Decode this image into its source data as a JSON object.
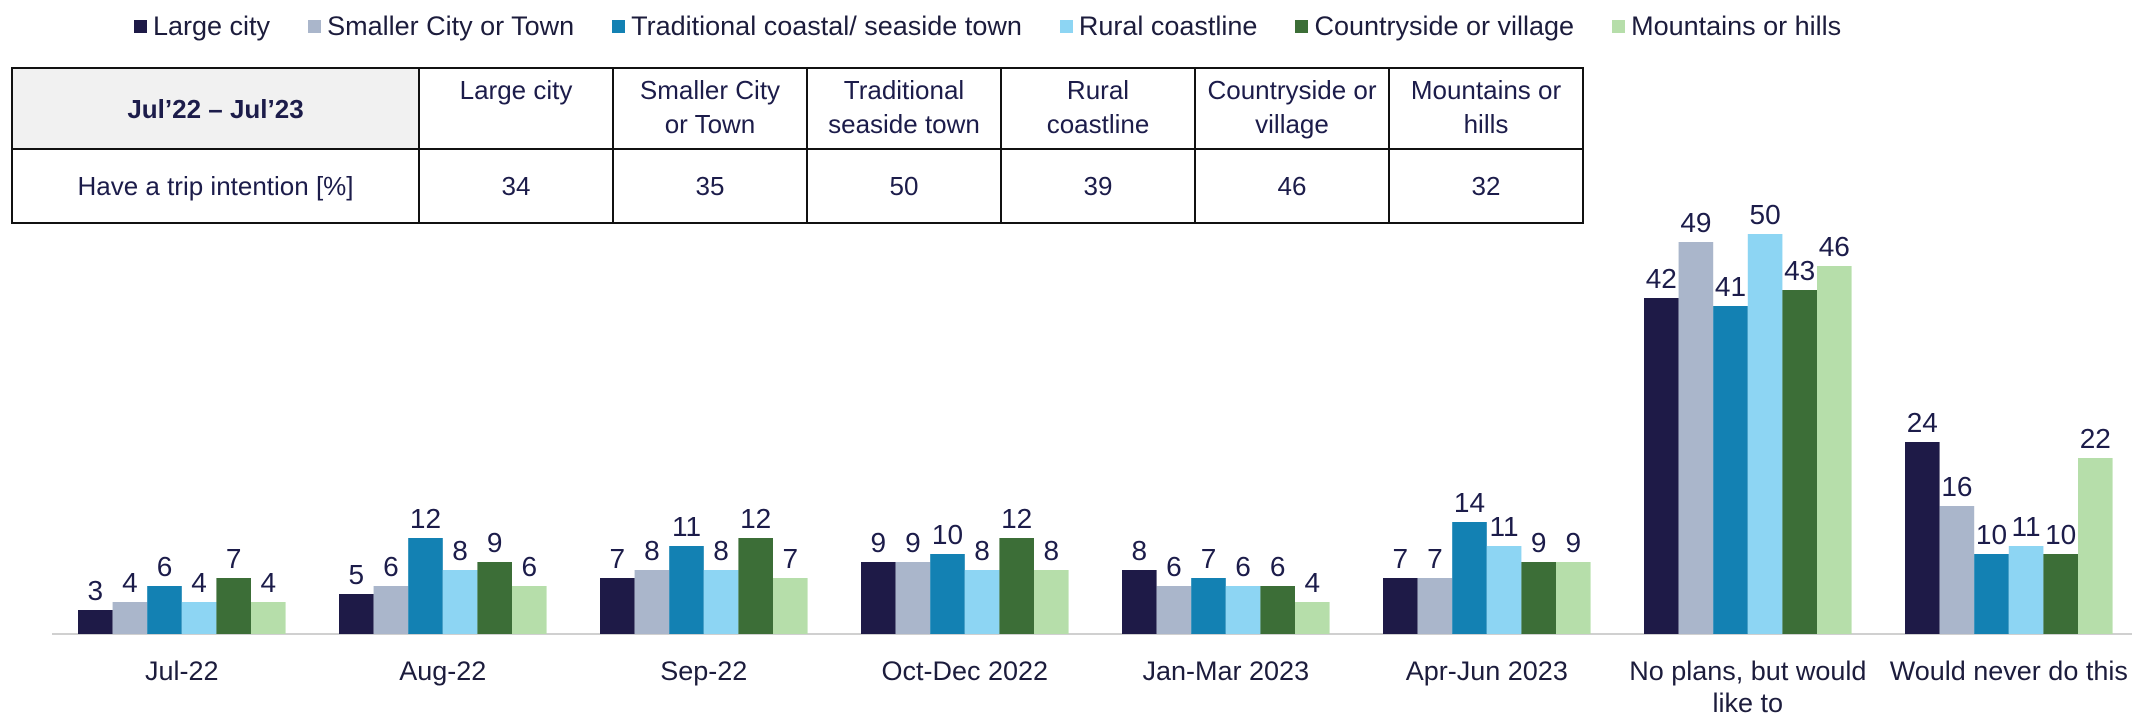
{
  "legend": [
    {
      "label": "Large city",
      "color": "#1e1a47"
    },
    {
      "label": "Smaller City or Town",
      "color": "#aab6cb"
    },
    {
      "label": "Traditional coastal/ seaside town",
      "color": "#1381b3"
    },
    {
      "label": "Rural coastline",
      "color": "#8dd5f3"
    },
    {
      "label": "Countryside or village",
      "color": "#3c6e37"
    },
    {
      "label": "Mountains or hills",
      "color": "#b6deaa"
    }
  ],
  "table": {
    "corner": "Jul’22 – Jul’23",
    "columns": [
      [
        "Large city"
      ],
      [
        "Smaller City",
        "or Town"
      ],
      [
        "Traditional",
        "seaside town"
      ],
      [
        "Rural",
        "coastline"
      ],
      [
        "Countryside or",
        "village"
      ],
      [
        "Mountains or",
        "hills"
      ]
    ],
    "row_label": "Have a trip intention [%]",
    "row_values": [
      "34",
      "35",
      "50",
      "39",
      "46",
      "32"
    ]
  },
  "chart_data": {
    "type": "bar",
    "categories": [
      [
        "Jul-22"
      ],
      [
        "Aug-22"
      ],
      [
        "Sep-22"
      ],
      [
        "Oct-Dec 2022"
      ],
      [
        "Jan-Mar 2023"
      ],
      [
        "Apr-Jun 2023"
      ],
      [
        "No plans, but would",
        "like to"
      ],
      [
        "Would never do this"
      ]
    ],
    "series": [
      {
        "name": "Large city",
        "color": "#1e1a47",
        "values": [
          3,
          5,
          7,
          9,
          8,
          7,
          42,
          24
        ]
      },
      {
        "name": "Smaller City or Town",
        "color": "#aab6cb",
        "values": [
          4,
          6,
          8,
          9,
          6,
          7,
          49,
          16
        ]
      },
      {
        "name": "Traditional coastal/ seaside town",
        "color": "#1381b3",
        "values": [
          6,
          12,
          11,
          10,
          7,
          14,
          41,
          10
        ]
      },
      {
        "name": "Rural coastline",
        "color": "#8dd5f3",
        "values": [
          4,
          8,
          8,
          8,
          6,
          11,
          50,
          11
        ]
      },
      {
        "name": "Countryside or village",
        "color": "#3c6e37",
        "values": [
          7,
          9,
          12,
          12,
          6,
          9,
          43,
          10
        ]
      },
      {
        "name": "Mountains or hills",
        "color": "#b6deaa",
        "values": [
          4,
          6,
          7,
          8,
          4,
          9,
          46,
          22
        ]
      }
    ],
    "ylim": [
      0,
      50
    ],
    "grid": false,
    "legend_position": "top"
  }
}
